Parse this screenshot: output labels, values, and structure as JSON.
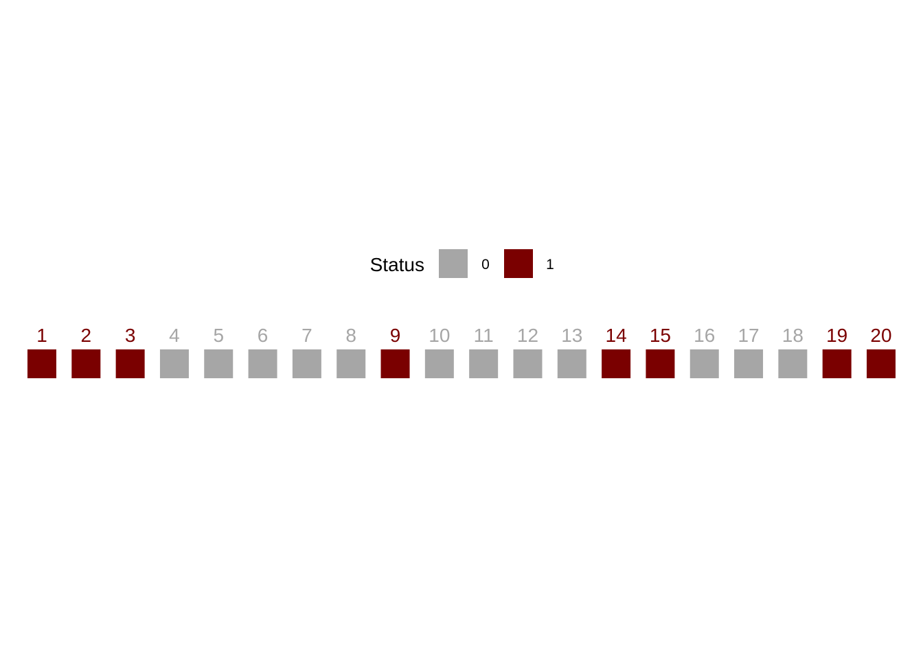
{
  "chart_data": {
    "type": "heatmap",
    "title": "",
    "legend": {
      "title": "Status",
      "position": "top",
      "entries": [
        {
          "label": "0",
          "value": 0,
          "color": "#A6A6A6"
        },
        {
          "label": "1",
          "value": 1,
          "color": "#7A0000"
        }
      ]
    },
    "categories": [
      "1",
      "2",
      "3",
      "4",
      "5",
      "6",
      "7",
      "8",
      "9",
      "10",
      "11",
      "12",
      "13",
      "14",
      "15",
      "16",
      "17",
      "18",
      "19",
      "20"
    ],
    "values": [
      1,
      1,
      1,
      0,
      0,
      0,
      0,
      0,
      1,
      0,
      0,
      0,
      0,
      1,
      1,
      0,
      0,
      0,
      1,
      1
    ],
    "colors": {
      "0": "#A6A6A6",
      "1": "#7A0000"
    },
    "grid": false
  }
}
